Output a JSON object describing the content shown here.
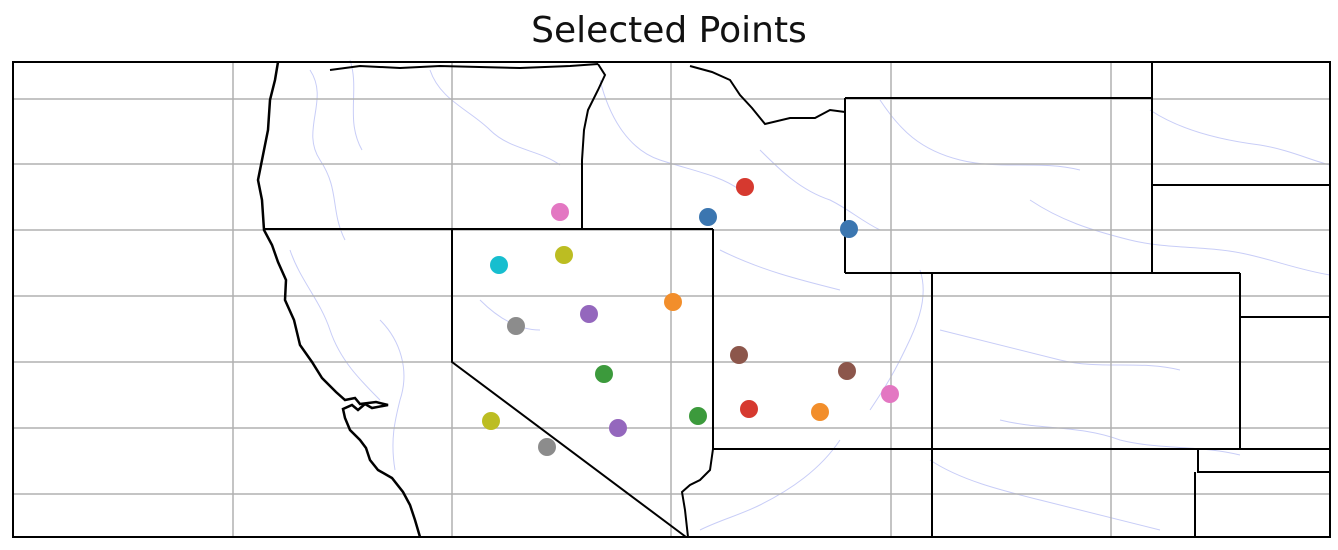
{
  "title": "Selected Points",
  "colors": {
    "grid": "#b0b0b0",
    "coast": "#000000",
    "border": "#000000",
    "river": "#c8cdf7"
  },
  "points": [
    {
      "color": "#d6392f"
    },
    {
      "color": "#e377c2"
    },
    {
      "color": "#3b76b0"
    },
    {
      "color": "#3b76b0"
    },
    {
      "color": "#17becf"
    },
    {
      "color": "#bcbd22"
    },
    {
      "color": "#f28e2b"
    },
    {
      "color": "#8c8c8c"
    },
    {
      "color": "#9467bd"
    },
    {
      "color": "#8c564b"
    },
    {
      "color": "#8c564b"
    },
    {
      "color": "#3c9a3c"
    },
    {
      "color": "#e377c2"
    },
    {
      "color": "#bcbd22"
    },
    {
      "color": "#d6392f"
    },
    {
      "color": "#f28e2b"
    },
    {
      "color": "#3c9a3c"
    },
    {
      "color": "#9467bd"
    },
    {
      "color": "#8c8c8c"
    }
  ]
}
